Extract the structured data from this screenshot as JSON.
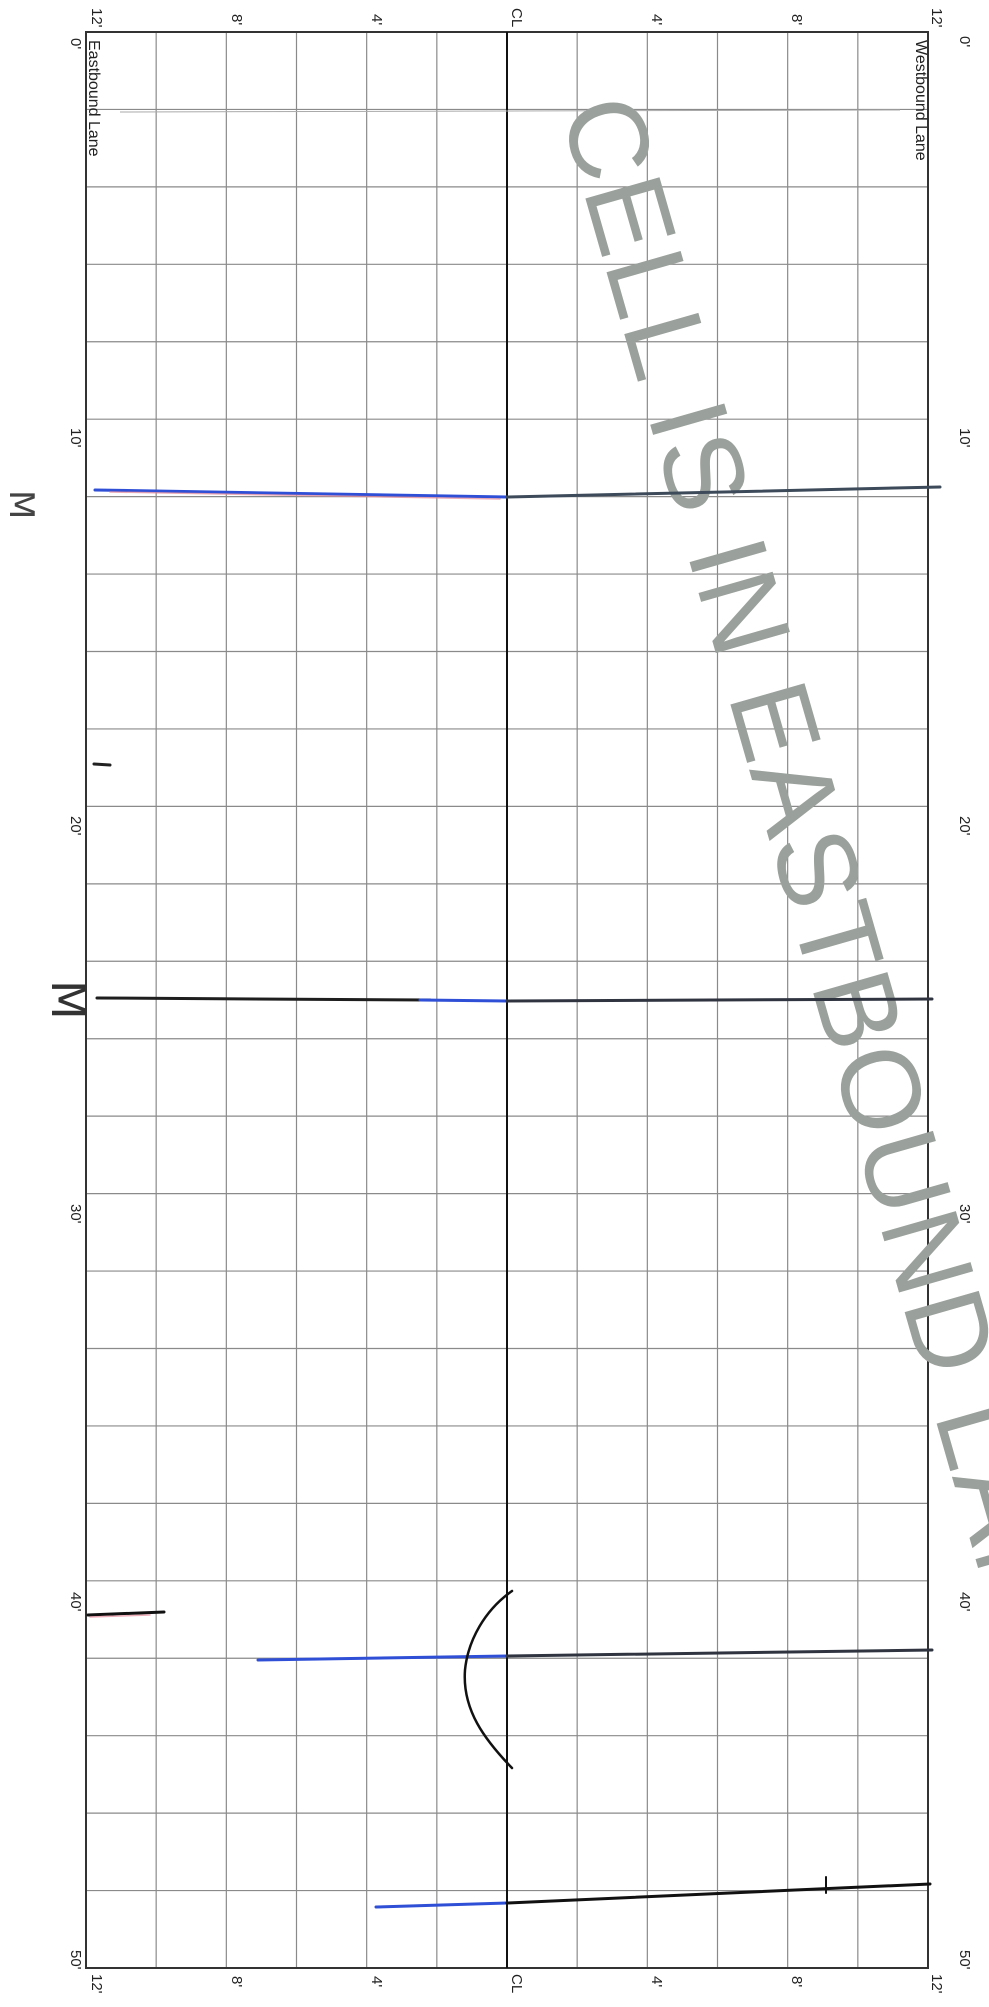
{
  "form": {
    "offset_labels": [
      "12'",
      "8'",
      "4'",
      "CL",
      "4'",
      "8'",
      "12'"
    ],
    "station_labels": [
      "0'",
      "10'",
      "20'",
      "30'",
      "40'",
      "50'"
    ],
    "left_lane_label": "Eastbound Lane",
    "right_lane_label": "Westbound Lane"
  },
  "stamp": {
    "text": "CELL IS IN EASTBOUND LANE",
    "color": "#9aa09b"
  },
  "annotations": {
    "marks": [
      "M",
      "M"
    ]
  }
}
